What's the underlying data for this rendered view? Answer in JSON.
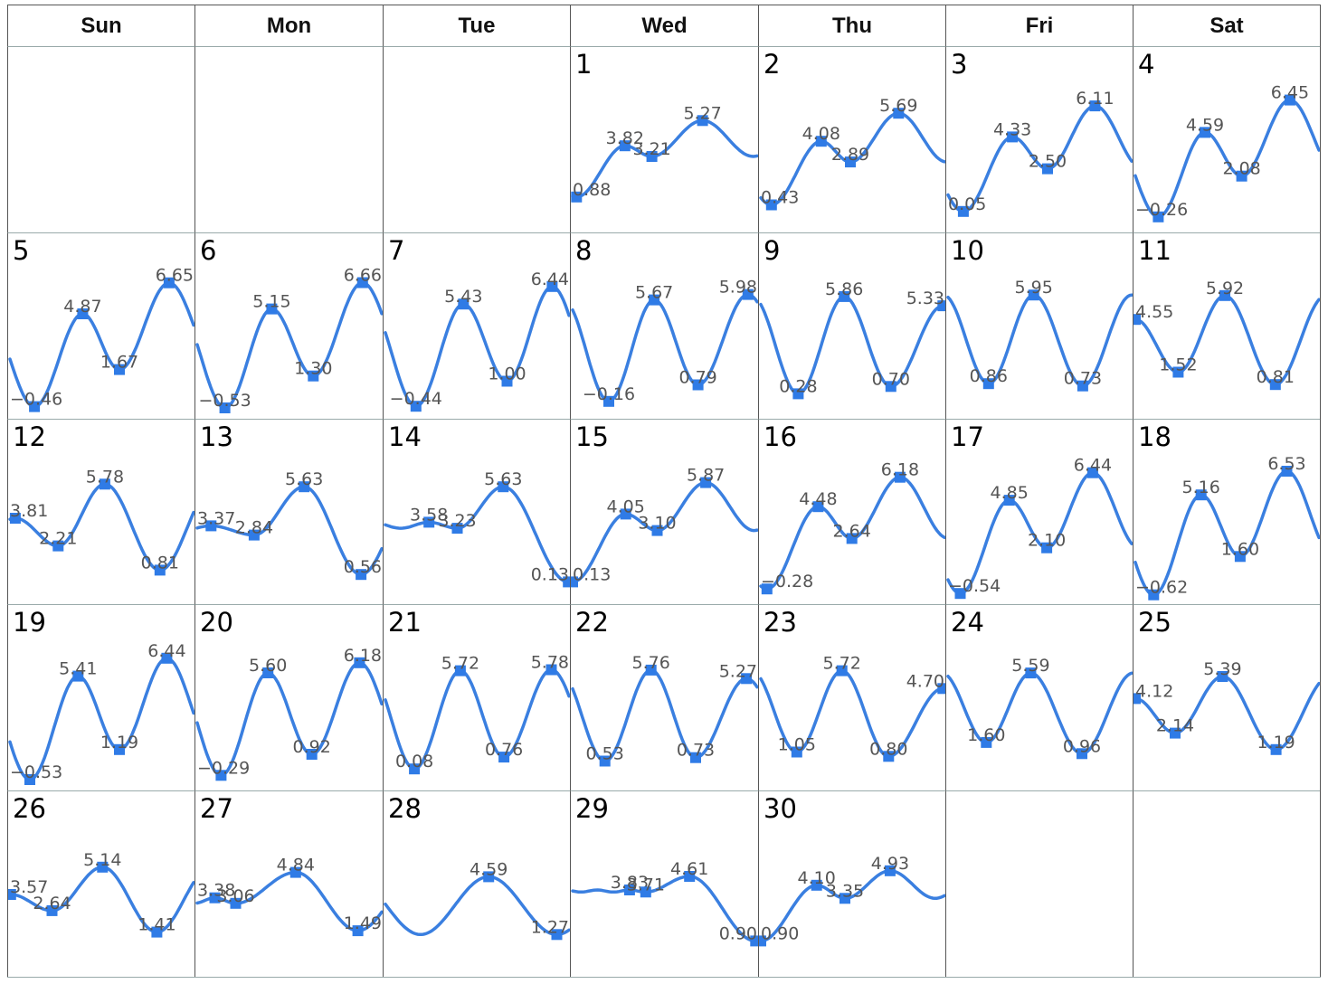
{
  "weekdays": [
    "Sun",
    "Mon",
    "Tue",
    "Wed",
    "Thu",
    "Fri",
    "Sat"
  ],
  "colors": {
    "line": "#3a7fe0",
    "marker": "#2f7be6",
    "label": "#555555"
  },
  "chart_data": {
    "type": "line",
    "title": "",
    "first_weekday_index": 3,
    "ylim": [
      -1.0,
      7.0
    ],
    "days": [
      {
        "day": "1",
        "extrema": [
          {
            "h": 0.5,
            "v": 0.88
          },
          {
            "h": 6.8,
            "v": 3.82
          },
          {
            "h": 10.3,
            "v": 3.21
          },
          {
            "h": 16.9,
            "v": 5.27
          }
        ]
      },
      {
        "day": "2",
        "extrema": [
          {
            "h": 1.4,
            "v": 0.43
          },
          {
            "h": 7.9,
            "v": 4.08
          },
          {
            "h": 11.7,
            "v": 2.89
          },
          {
            "h": 18.0,
            "v": 5.69
          }
        ]
      },
      {
        "day": "3",
        "extrema": [
          {
            "h": 2.0,
            "v": 0.05
          },
          {
            "h": 8.4,
            "v": 4.33
          },
          {
            "h": 13.0,
            "v": 2.5
          },
          {
            "h": 19.2,
            "v": 6.11
          }
        ]
      },
      {
        "day": "4",
        "extrema": [
          {
            "h": 3.0,
            "v": -0.26
          },
          {
            "h": 9.1,
            "v": 4.59
          },
          {
            "h": 13.9,
            "v": 2.08
          },
          {
            "h": 20.2,
            "v": 6.45
          }
        ]
      },
      {
        "day": "5",
        "extrema": [
          {
            "h": 3.2,
            "v": -0.46
          },
          {
            "h": 9.5,
            "v": 4.87
          },
          {
            "h": 14.3,
            "v": 1.67
          },
          {
            "h": 20.8,
            "v": 6.65
          }
        ]
      },
      {
        "day": "6",
        "extrema": [
          {
            "h": 3.6,
            "v": -0.53
          },
          {
            "h": 9.7,
            "v": 5.15
          },
          {
            "h": 15.1,
            "v": 1.3
          },
          {
            "h": 21.5,
            "v": 6.66
          }
        ]
      },
      {
        "day": "7",
        "extrema": [
          {
            "h": 4.0,
            "v": -0.44
          },
          {
            "h": 10.2,
            "v": 5.43
          },
          {
            "h": 15.9,
            "v": 1.0
          },
          {
            "h": 21.8,
            "v": 6.44
          }
        ]
      },
      {
        "day": "8",
        "extrema": [
          {
            "h": 4.7,
            "v": -0.16
          },
          {
            "h": 10.6,
            "v": 5.67
          },
          {
            "h": 16.3,
            "v": 0.79
          },
          {
            "h": 22.8,
            "v": 5.98
          }
        ]
      },
      {
        "day": "9",
        "extrema": [
          {
            "h": 4.9,
            "v": 0.28
          },
          {
            "h": 10.9,
            "v": 5.86
          },
          {
            "h": 17.0,
            "v": 0.7
          },
          {
            "h": 23.8,
            "v": 5.33
          }
        ]
      },
      {
        "day": "10",
        "extrema": [
          {
            "h": 5.3,
            "v": 0.86
          },
          {
            "h": 11.2,
            "v": 5.95
          },
          {
            "h": 17.6,
            "v": 0.73
          }
        ]
      },
      {
        "day": "11",
        "extrema": [
          {
            "h": 0.0,
            "v": 4.55
          },
          {
            "h": 5.6,
            "v": 1.52
          },
          {
            "h": 11.7,
            "v": 5.92
          },
          {
            "h": 18.3,
            "v": 0.81
          }
        ]
      },
      {
        "day": "12",
        "extrema": [
          {
            "h": 0.7,
            "v": 3.81
          },
          {
            "h": 6.3,
            "v": 2.21
          },
          {
            "h": 12.4,
            "v": 5.78
          },
          {
            "h": 19.6,
            "v": 0.81
          }
        ]
      },
      {
        "day": "13",
        "extrema": [
          {
            "h": 1.8,
            "v": 3.37
          },
          {
            "h": 7.4,
            "v": 2.84
          },
          {
            "h": 13.9,
            "v": 5.63
          },
          {
            "h": 21.3,
            "v": 0.56
          }
        ]
      },
      {
        "day": "14",
        "extrema": [
          {
            "h": 5.7,
            "v": 3.58
          },
          {
            "h": 9.4,
            "v": 3.23
          },
          {
            "h": 15.4,
            "v": 5.63
          },
          {
            "h": 23.9,
            "v": 0.13
          }
        ]
      },
      {
        "day": "15",
        "extrema": [
          {
            "h": 0.0,
            "v": 0.13
          },
          {
            "h": 6.9,
            "v": 4.05
          },
          {
            "h": 11.0,
            "v": 3.1
          },
          {
            "h": 17.3,
            "v": 5.87
          }
        ]
      },
      {
        "day": "16",
        "extrema": [
          {
            "h": 0.8,
            "v": -0.28
          },
          {
            "h": 7.5,
            "v": 4.48
          },
          {
            "h": 11.9,
            "v": 2.64
          },
          {
            "h": 18.2,
            "v": 6.18
          }
        ]
      },
      {
        "day": "17",
        "extrema": [
          {
            "h": 1.6,
            "v": -0.54
          },
          {
            "h": 8.0,
            "v": 4.85
          },
          {
            "h": 12.9,
            "v": 2.1
          },
          {
            "h": 18.9,
            "v": 6.44
          }
        ]
      },
      {
        "day": "18",
        "extrema": [
          {
            "h": 2.4,
            "v": -0.62
          },
          {
            "h": 8.6,
            "v": 5.16
          },
          {
            "h": 13.7,
            "v": 1.6
          },
          {
            "h": 19.8,
            "v": 6.53
          }
        ]
      },
      {
        "day": "19",
        "extrema": [
          {
            "h": 2.6,
            "v": -0.53
          },
          {
            "h": 8.9,
            "v": 5.41
          },
          {
            "h": 14.3,
            "v": 1.19
          },
          {
            "h": 20.5,
            "v": 6.44
          }
        ]
      },
      {
        "day": "20",
        "extrema": [
          {
            "h": 3.1,
            "v": -0.29
          },
          {
            "h": 9.2,
            "v": 5.6
          },
          {
            "h": 14.9,
            "v": 0.92
          },
          {
            "h": 21.1,
            "v": 6.18
          }
        ]
      },
      {
        "day": "21",
        "extrema": [
          {
            "h": 3.8,
            "v": 0.08
          },
          {
            "h": 9.8,
            "v": 5.72
          },
          {
            "h": 15.5,
            "v": 0.76
          },
          {
            "h": 21.7,
            "v": 5.78
          }
        ]
      },
      {
        "day": "22",
        "extrema": [
          {
            "h": 4.2,
            "v": 0.53
          },
          {
            "h": 10.2,
            "v": 5.76
          },
          {
            "h": 16.0,
            "v": 0.73
          },
          {
            "h": 22.6,
            "v": 5.27
          }
        ]
      },
      {
        "day": "23",
        "extrema": [
          {
            "h": 4.7,
            "v": 1.05
          },
          {
            "h": 10.6,
            "v": 5.72
          },
          {
            "h": 16.7,
            "v": 0.8
          },
          {
            "h": 23.8,
            "v": 4.7
          }
        ]
      },
      {
        "day": "24",
        "extrema": [
          {
            "h": 5.0,
            "v": 1.6
          },
          {
            "h": 10.8,
            "v": 5.59
          },
          {
            "h": 17.5,
            "v": 0.96
          }
        ]
      },
      {
        "day": "25",
        "extrema": [
          {
            "h": 0.0,
            "v": 4.12
          },
          {
            "h": 5.2,
            "v": 2.14
          },
          {
            "h": 11.4,
            "v": 5.39
          },
          {
            "h": 18.4,
            "v": 1.19
          }
        ]
      },
      {
        "day": "26",
        "extrema": [
          {
            "h": 0.1,
            "v": 3.57
          },
          {
            "h": 5.5,
            "v": 2.64
          },
          {
            "h": 12.1,
            "v": 5.14
          },
          {
            "h": 19.2,
            "v": 1.41
          }
        ]
      },
      {
        "day": "27",
        "extrema": [
          {
            "h": 2.3,
            "v": 3.38
          },
          {
            "h": 5.0,
            "v": 3.06
          },
          {
            "h": 12.8,
            "v": 4.84
          },
          {
            "h": 20.9,
            "v": 1.49
          }
        ]
      },
      {
        "day": "28",
        "extrema": [
          {
            "h": 13.5,
            "v": 4.59
          },
          {
            "h": 22.4,
            "v": 1.27
          }
        ]
      },
      {
        "day": "29",
        "extrema": [
          {
            "h": 7.4,
            "v": 3.83
          },
          {
            "h": 9.5,
            "v": 3.71
          },
          {
            "h": 15.2,
            "v": 4.61
          },
          {
            "h": 23.8,
            "v": 0.9
          }
        ]
      },
      {
        "day": "30",
        "extrema": [
          {
            "h": 0.0,
            "v": 0.9
          },
          {
            "h": 7.3,
            "v": 4.1
          },
          {
            "h": 11.0,
            "v": 3.35
          },
          {
            "h": 16.9,
            "v": 4.93
          }
        ]
      }
    ]
  }
}
